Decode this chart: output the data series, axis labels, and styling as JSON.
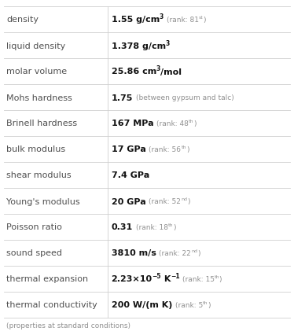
{
  "rows": [
    {
      "label": "density",
      "main": "1.55 g/cm",
      "main_sup": "3",
      "main_end": "",
      "note": "(rank: 81",
      "note_sup": "st",
      "note_end": ")"
    },
    {
      "label": "liquid density",
      "main": "1.378 g/cm",
      "main_sup": "3",
      "main_end": "",
      "note": "",
      "note_sup": "",
      "note_end": ""
    },
    {
      "label": "molar volume",
      "main": "25.86 cm",
      "main_sup": "3",
      "main_end": "/mol",
      "note": "",
      "note_sup": "",
      "note_end": ""
    },
    {
      "label": "Mohs hardness",
      "main": "1.75",
      "main_sup": "",
      "main_end": "",
      "note": "(between gypsum and talc)",
      "note_sup": "",
      "note_end": ""
    },
    {
      "label": "Brinell hardness",
      "main": "167 MPa",
      "main_sup": "",
      "main_end": "",
      "note": "(rank: 48",
      "note_sup": "th",
      "note_end": ")"
    },
    {
      "label": "bulk modulus",
      "main": "17 GPa",
      "main_sup": "",
      "main_end": "",
      "note": "(rank: 56",
      "note_sup": "th",
      "note_end": ")"
    },
    {
      "label": "shear modulus",
      "main": "7.4 GPa",
      "main_sup": "",
      "main_end": "",
      "note": "",
      "note_sup": "",
      "note_end": ""
    },
    {
      "label": "Young's modulus",
      "main": "20 GPa",
      "main_sup": "",
      "main_end": "",
      "note": "(rank: 52",
      "note_sup": "nd",
      "note_end": ")"
    },
    {
      "label": "Poisson ratio",
      "main": "0.31",
      "main_sup": "",
      "main_end": "",
      "note": "(rank: 18",
      "note_sup": "th",
      "note_end": ")"
    },
    {
      "label": "sound speed",
      "main": "3810 m/s",
      "main_sup": "",
      "main_end": "",
      "note": "(rank: 22",
      "note_sup": "nd",
      "note_end": ")"
    },
    {
      "label": "thermal expansion",
      "main": "2.23×10",
      "main_sup": "−5",
      "main_end": " K",
      "main_end_sup": "−1",
      "note": "(rank: 15",
      "note_sup": "th",
      "note_end": ")"
    },
    {
      "label": "thermal conductivity",
      "main": "200 W/(m K)",
      "main_sup": "",
      "main_end": "",
      "note": "(rank: 5",
      "note_sup": "th",
      "note_end": ")"
    }
  ],
  "footer": "(properties at standard conditions)",
  "bg_color": "#ffffff",
  "label_color": "#505050",
  "value_color": "#111111",
  "note_color": "#909090",
  "line_color": "#d0d0d0",
  "label_font_size": 8.0,
  "value_font_size": 8.0,
  "sup_font_size": 5.5,
  "note_font_size": 6.5,
  "note_sup_font_size": 4.5,
  "footer_font_size": 6.5,
  "col_split": 0.365
}
